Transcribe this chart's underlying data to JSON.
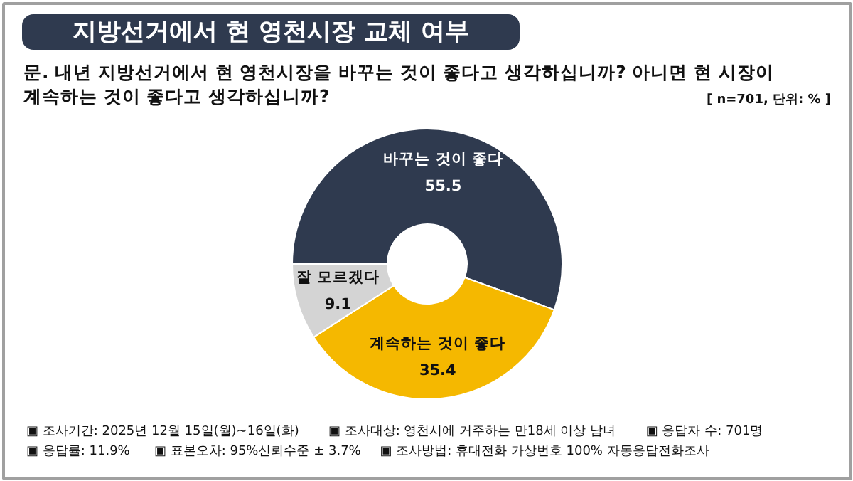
{
  "chart_data": {
    "type": "donut",
    "title": "지방선거에서 현 영천시장 교체 여부",
    "subtitle": "문. 내년 지방선거에서 현 영천시장을 바꾸는 것이 좋다고 생각하십니까? 아니면 현 시장이\n계속하는 것이 좋다고 생각하십니까?",
    "categories": [
      "바꾸는 것이 좋다",
      "계속하는 것이 좋다",
      "잘 모르겠다"
    ],
    "values": [
      55.5,
      35.4,
      9.1
    ],
    "colors": [
      "#2f3a4f",
      "#f5b800",
      "#d4d4d4"
    ],
    "data_labels": true,
    "annotations": [
      "[ n=701, 단위: % ]",
      "▣ 조사기간: 2025년 12월 15일(월)~16일(화)",
      "▣ 조사대상: 영천시에 거주하는 만18세 이상 남녀",
      "▣ 응답자 수: 701명",
      "▣ 응답률: 11.9%",
      "▣ 표본오차: 95%신뢰수준 ± 3.7%",
      "▣ 조사방법: 휴대전화 가상번호 100% 자동응답전화조사"
    ]
  }
}
